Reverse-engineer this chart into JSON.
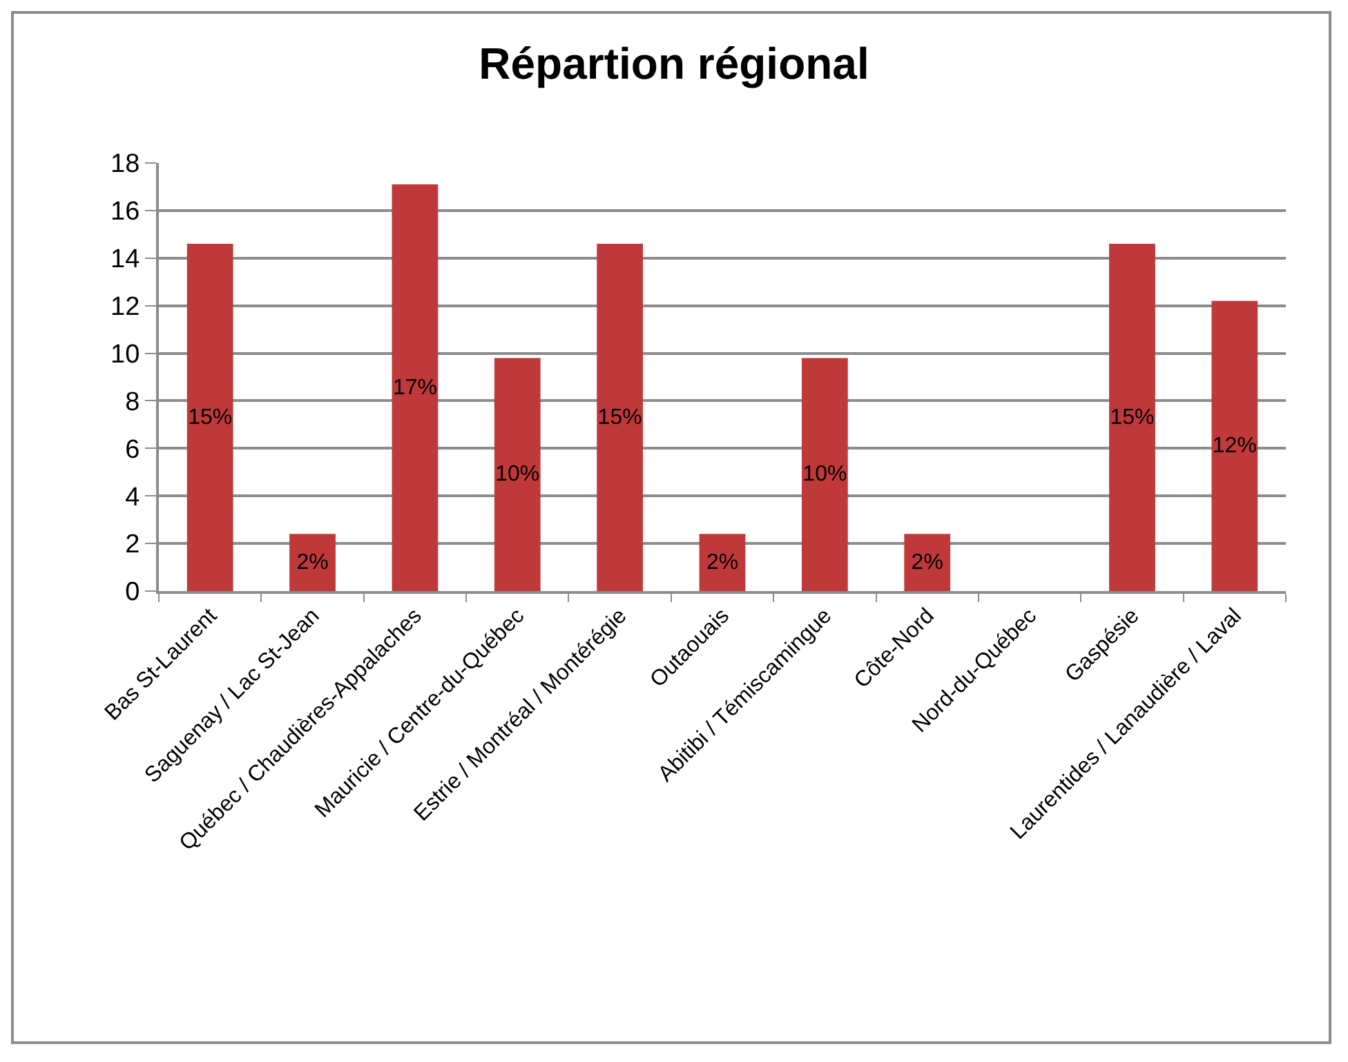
{
  "chart_data": {
    "type": "bar",
    "title": "Répartion régional",
    "categories": [
      "Bas St-Laurent",
      "Saguenay / Lac St-Jean",
      "Québec / Chaudières-Appalaches",
      "Mauricie / Centre-du-Québec",
      "Estrie / Montréal / Montérégie",
      "Outaouais",
      "Abitibi / Témiscamingue",
      "Côte-Nord",
      "Nord-du-Québec",
      "Gaspésie",
      "Laurentides / Lanaudière / Laval"
    ],
    "values": [
      14.6,
      2.4,
      17.1,
      9.8,
      14.6,
      2.4,
      9.8,
      2.4,
      0,
      14.6,
      12.2
    ],
    "value_labels": [
      "15%",
      "2%",
      "17%",
      "10%",
      "15%",
      "2%",
      "10%",
      "2%",
      null,
      "15%",
      "12%"
    ],
    "color": "#c0393a",
    "ylim": [
      0,
      18
    ],
    "yticks": [
      0,
      2,
      4,
      6,
      8,
      10,
      12,
      14,
      16,
      18
    ],
    "grid": "y"
  }
}
